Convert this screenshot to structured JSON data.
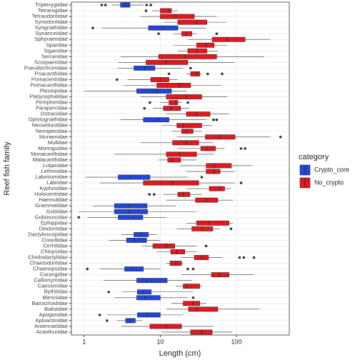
{
  "chart_data": {
    "type": "boxplot",
    "x_label": "Length (cm)",
    "y_label": "Reef fish family",
    "log_x": true,
    "grid": true,
    "xlim": [
      0.68,
      495
    ],
    "xticks": [
      1,
      10,
      100
    ],
    "legend_title": "category",
    "legend_position": "right",
    "series": [
      {
        "name": "Crypto_core",
        "color": "#1f45e0"
      },
      {
        "name": "No_crypto",
        "color": "#e8151b"
      }
    ],
    "boxes": [
      {
        "family": "Tripterygiidae",
        "category": "Crypto_core",
        "min": 2.3,
        "q1": 3.0,
        "median": 3.5,
        "q3": 4.0,
        "max": 6.0,
        "outliers": [
          1.7,
          1.9,
          6.6,
          7.5
        ]
      },
      {
        "family": "Tetrarogidae",
        "category": "No_crypto",
        "min": 7.8,
        "q1": 10,
        "median": 13,
        "q3": 14,
        "max": 17,
        "outliers": [
          6.5
        ]
      },
      {
        "family": "Tetraodontidae",
        "category": "No_crypto",
        "min": 5.5,
        "q1": 10,
        "median": 16,
        "q3": 28,
        "max": 55,
        "outliers": []
      },
      {
        "family": "Synodontidae",
        "category": "No_crypto",
        "min": 11,
        "q1": 17,
        "median": 30,
        "q3": 41,
        "max": 75,
        "outliers": []
      },
      {
        "family": "Syngnathidae",
        "category": "Crypto_core",
        "min": 1.7,
        "q1": 7,
        "median": 11,
        "q3": 17,
        "max": 40,
        "outliers": [
          1.3
        ]
      },
      {
        "family": "Synanceiidae",
        "category": "No_crypto",
        "min": 15,
        "q1": 19,
        "median": 22,
        "q3": 26,
        "max": 30,
        "outliers": [
          9.5,
          55
        ]
      },
      {
        "family": "Sphyraenidae",
        "category": "No_crypto",
        "min": 23,
        "q1": 48,
        "median": 75,
        "q3": 130,
        "max": 280,
        "outliers": []
      },
      {
        "family": "Sparidae",
        "category": "No_crypto",
        "min": 15,
        "q1": 30,
        "median": 40,
        "q3": 51,
        "max": 75,
        "outliers": []
      },
      {
        "family": "Siganidae",
        "category": "No_crypto",
        "min": 17,
        "q1": 23,
        "median": 30,
        "q3": 41,
        "max": 57,
        "outliers": []
      },
      {
        "family": "Serranidae",
        "category": "No_crypto",
        "min": 3,
        "q1": 9.5,
        "median": 21,
        "q3": 55,
        "max": 230,
        "outliers": []
      },
      {
        "family": "Scorpaenidae",
        "category": "No_crypto",
        "min": 2.8,
        "q1": 6.5,
        "median": 12,
        "q3": 23,
        "max": 95,
        "outliers": []
      },
      {
        "family": "Pseudochromidae",
        "category": "Crypto_core",
        "min": 2.8,
        "q1": 4.5,
        "median": 6.2,
        "q3": 8.5,
        "max": 20,
        "outliers": [
          25
        ]
      },
      {
        "family": "Priacanthidae",
        "category": "No_crypto",
        "min": 22,
        "q1": 25,
        "median": 30,
        "q3": 33,
        "max": 35,
        "outliers": [
          13,
          42,
          65
        ]
      },
      {
        "family": "Pomacentridae",
        "category": "No_crypto",
        "min": 3.7,
        "q1": 7.5,
        "median": 10,
        "q3": 13,
        "max": 17,
        "outliers": [
          2.7
        ]
      },
      {
        "family": "Pomacanthidae",
        "category": "No_crypto",
        "min": 3.3,
        "q1": 9,
        "median": 18,
        "q3": 25,
        "max": 63,
        "outliers": []
      },
      {
        "family": "Plesiopidae",
        "category": "Crypto_core",
        "min": 1.0,
        "q1": 4.9,
        "median": 9,
        "q3": 14,
        "max": 22,
        "outliers": []
      },
      {
        "family": "Platycephalidae",
        "category": "No_crypto",
        "min": 5.5,
        "q1": 12,
        "median": 22,
        "q3": 35,
        "max": 75,
        "outliers": []
      },
      {
        "family": "Pempheridae",
        "category": "No_crypto",
        "min": 10,
        "q1": 13,
        "median": 16,
        "q3": 17,
        "max": 19,
        "outliers": [
          7.3,
          23
        ]
      },
      {
        "family": "Parapercidae",
        "category": "No_crypto",
        "min": 8,
        "q1": 11,
        "median": 14,
        "q3": 18.5,
        "max": 24,
        "outliers": [
          6.2
        ]
      },
      {
        "family": "Ostraciidae",
        "category": "No_crypto",
        "min": 12,
        "q1": 22,
        "median": 30,
        "q3": 45,
        "max": 80,
        "outliers": []
      },
      {
        "family": "Opistognathidae",
        "category": "Crypto_core",
        "min": 3,
        "q1": 6,
        "median": 9.5,
        "q3": 13,
        "max": 41,
        "outliers": [
          50,
          55
        ]
      },
      {
        "family": "Neosebastidae",
        "category": "No_crypto",
        "min": 10.5,
        "q1": 16.5,
        "median": 20,
        "q3": 35,
        "max": 48,
        "outliers": []
      },
      {
        "family": "Nemipteridae",
        "category": "No_crypto",
        "min": 14,
        "q1": 19,
        "median": 22,
        "q3": 27,
        "max": 35,
        "outliers": []
      },
      {
        "family": "Muraenidae",
        "category": "No_crypto",
        "min": 16.5,
        "q1": 39,
        "median": 60,
        "q3": 96,
        "max": 280,
        "outliers": [
          380
        ]
      },
      {
        "family": "Mullidae",
        "category": "No_crypto",
        "min": 5.5,
        "q1": 14.5,
        "median": 22,
        "q3": 32,
        "max": 50,
        "outliers": []
      },
      {
        "family": "Moringuidae",
        "category": "No_crypto",
        "min": 17,
        "q1": 34,
        "median": 41,
        "q3": 53,
        "max": 70,
        "outliers": [
          115,
          130
        ]
      },
      {
        "family": "Monacanthidae",
        "category": "No_crypto",
        "min": 2.5,
        "q1": 12,
        "median": 18,
        "q3": 30,
        "max": 50,
        "outliers": []
      },
      {
        "family": "Malacanthidae",
        "category": "No_crypto",
        "min": 9.5,
        "q1": 12.5,
        "median": 14,
        "q3": 18.5,
        "max": 30,
        "outliers": []
      },
      {
        "family": "Lutjanidae",
        "category": "No_crypto",
        "min": 18,
        "q1": 40,
        "median": 51,
        "q3": 86,
        "max": 160,
        "outliers": []
      },
      {
        "family": "Lethrinidae",
        "category": "No_crypto",
        "min": 22,
        "q1": 40,
        "median": 51,
        "q3": 61,
        "max": 95,
        "outliers": []
      },
      {
        "family": "Labrisomidae",
        "category": "Crypto_core",
        "min": 1.05,
        "q1": 2.8,
        "median": 4,
        "q3": 7.3,
        "max": 23,
        "outliers": [
          35
        ]
      },
      {
        "family": "Labridae",
        "category": "No_crypto",
        "min": 1.6,
        "q1": 6,
        "median": 14.5,
        "q3": 32,
        "max": 95,
        "outliers": [
          115
        ]
      },
      {
        "family": "Kyphosidae",
        "category": "No_crypto",
        "min": 22,
        "q1": 44,
        "median": 60,
        "q3": 70,
        "max": 85,
        "outliers": []
      },
      {
        "family": "Holocentridae",
        "category": "No_crypto",
        "min": 11,
        "q1": 17,
        "median": 20,
        "q3": 24.5,
        "max": 35,
        "outliers": [
          7.2,
          8.3
        ]
      },
      {
        "family": "Haemulidae",
        "category": "No_crypto",
        "min": 12,
        "q1": 29,
        "median": 40,
        "q3": 57,
        "max": 90,
        "outliers": []
      },
      {
        "family": "Grammatidae",
        "category": "Crypto_core",
        "min": 1.3,
        "q1": 2.5,
        "median": 3.9,
        "q3": 6.7,
        "max": 16,
        "outliers": []
      },
      {
        "family": "Gobiidae",
        "category": "Crypto_core",
        "min": 0.85,
        "q1": 2.5,
        "median": 3.9,
        "q3": 6.8,
        "max": 30,
        "outliers": []
      },
      {
        "family": "Gobiesocidae",
        "category": "Crypto_core",
        "min": 1.1,
        "q1": 2.8,
        "median": 4.5,
        "q3": 5.9,
        "max": 12,
        "outliers": [
          0.85
        ]
      },
      {
        "family": "Ephippidae",
        "category": "No_crypto",
        "min": 22,
        "q1": 30,
        "median": 44,
        "q3": 80,
        "max": 90,
        "outliers": []
      },
      {
        "family": "Diodontidae",
        "category": "No_crypto",
        "min": 16.5,
        "q1": 26,
        "median": 35,
        "q3": 49,
        "max": 60,
        "outliers": [
          85
        ]
      },
      {
        "family": "Dactyloscopidae",
        "category": "Crypto_core",
        "min": 3.1,
        "q1": 4.5,
        "median": 5.5,
        "q3": 7,
        "max": 9,
        "outliers": []
      },
      {
        "family": "Creediidae",
        "category": "Crypto_core",
        "min": 2.1,
        "q1": 3.6,
        "median": 4.5,
        "q3": 6.6,
        "max": 10,
        "outliers": []
      },
      {
        "family": "Cirrhitidae",
        "category": "No_crypto",
        "min": 5.8,
        "q1": 8,
        "median": 12,
        "q3": 15.5,
        "max": 30,
        "outliers": [
          40
        ]
      },
      {
        "family": "Chlopsidae",
        "category": "No_crypto",
        "min": 9,
        "q1": 13.7,
        "median": 16.5,
        "q3": 21,
        "max": 30,
        "outliers": []
      },
      {
        "family": "Cheilodactylidae",
        "category": "No_crypto",
        "min": 19,
        "q1": 28,
        "median": 35,
        "q3": 43,
        "max": 65,
        "outliers": [
          110,
          125,
          170
        ]
      },
      {
        "family": "Chaetodontidae",
        "category": "No_crypto",
        "min": 12,
        "q1": 13.4,
        "median": 16,
        "q3": 19,
        "max": 20,
        "outliers": []
      },
      {
        "family": "Chaenopsidae",
        "category": "Crypto_core",
        "min": 1.6,
        "q1": 3.4,
        "median": 4.2,
        "q3": 6,
        "max": 10,
        "outliers": [
          1.1,
          23,
          27
        ]
      },
      {
        "family": "Carangidae",
        "category": "No_crypto",
        "min": 19,
        "q1": 47,
        "median": 60,
        "q3": 80,
        "max": 170,
        "outliers": []
      },
      {
        "family": "Callionymidae",
        "category": "Crypto_core",
        "min": 1.8,
        "q1": 4.9,
        "median": 6.7,
        "q3": 12.3,
        "max": 26,
        "outliers": []
      },
      {
        "family": "Caesionidae",
        "category": "No_crypto",
        "min": 16,
        "q1": 20,
        "median": 22,
        "q3": 33,
        "max": 35,
        "outliers": []
      },
      {
        "family": "Bythitidae",
        "category": "Crypto_core",
        "min": 3.2,
        "q1": 5,
        "median": 6,
        "q3": 7.6,
        "max": 27,
        "outliers": [
          2.1
        ]
      },
      {
        "family": "Blenniidae",
        "category": "Crypto_core",
        "min": 2.5,
        "q1": 4.9,
        "median": 6.3,
        "q3": 10,
        "max": 23,
        "outliers": [
          27
        ]
      },
      {
        "family": "Batrachoididae",
        "category": "No_crypto",
        "min": 14,
        "q1": 20,
        "median": 27,
        "q3": 33,
        "max": 40,
        "outliers": []
      },
      {
        "family": "Balistidae",
        "category": "No_crypto",
        "min": 12,
        "q1": 23.5,
        "median": 30,
        "q3": 57,
        "max": 200,
        "outliers": []
      },
      {
        "family": "Apogonidae",
        "category": "Crypto_core",
        "min": 2,
        "q1": 5,
        "median": 6.7,
        "q3": 10,
        "max": 20,
        "outliers": [
          1.6
        ]
      },
      {
        "family": "Aploactinidae",
        "category": "Crypto_core",
        "min": 2.7,
        "q1": 3.5,
        "median": 4,
        "q3": 4.7,
        "max": 5.8,
        "outliers": [
          2
        ]
      },
      {
        "family": "Antennariidae",
        "category": "No_crypto",
        "min": 3.1,
        "q1": 7.3,
        "median": 12,
        "q3": 19,
        "max": 50,
        "outliers": []
      },
      {
        "family": "Acanthuridae",
        "category": "No_crypto",
        "min": 10.5,
        "q1": 25,
        "median": 35,
        "q3": 48,
        "max": 88,
        "outliers": []
      }
    ]
  }
}
